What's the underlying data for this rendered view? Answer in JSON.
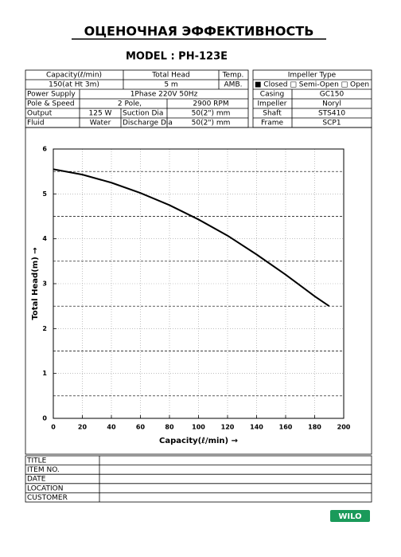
{
  "header": {
    "title": "ОЦЕНОЧНАЯ ЭФФЕКТИВНОСТЬ",
    "model": "MODEL : PH-123E"
  },
  "spec": {
    "capacity_label": "Capacity(ℓ/min)",
    "capacity_value": "150(at Ht 3m)",
    "head_label": "Total Head",
    "head_value": "5 m",
    "temp_label": "Temp.",
    "temp_value": "AMB.",
    "impeller_type_label": "Impeller Type",
    "impeller_type_value": "■ Closed □ Semi-Open □ Open",
    "rows": [
      [
        "Power Supply",
        "1Phase 220V 50Hz",
        "Casing",
        "GC150"
      ],
      [
        "Pole & Speed",
        "2 Pole,",
        "2900 RPM",
        "Impeller",
        "Noryl"
      ],
      [
        "Output",
        "125 W",
        "Suction Dia",
        "50(2\") mm",
        "Shaft",
        "STS410"
      ],
      [
        "Fluid",
        "Water",
        "Discharge Dia",
        "50(2\") mm",
        "Frame",
        "SCP1"
      ]
    ]
  },
  "chart_data": {
    "type": "line",
    "x_label": "Capacity(ℓ/min) →",
    "y_label": "Total Head(m) →",
    "x": [
      0,
      20,
      40,
      60,
      80,
      100,
      120,
      140,
      160,
      180,
      190
    ],
    "series": [
      {
        "name": "Total Head",
        "color": "#000000",
        "values": [
          5.55,
          5.43,
          5.25,
          5.02,
          4.75,
          4.43,
          4.07,
          3.65,
          3.2,
          2.72,
          2.5
        ]
      }
    ],
    "xlim": [
      0,
      200
    ],
    "xticks": [
      0,
      20,
      40,
      60,
      80,
      100,
      120,
      140,
      160,
      180,
      200
    ],
    "ylim": [
      0,
      6
    ],
    "yticks": [
      0,
      1,
      2,
      3,
      4,
      5,
      6
    ],
    "minor_yticks": [
      0.5,
      1.5,
      2.5,
      3.5,
      4.5,
      5.5
    ],
    "grid": true
  },
  "footer": {
    "labels": [
      "TITLE",
      "ITEM NO.",
      "DATE",
      "LOCATION",
      "CUSTOMER"
    ]
  },
  "logo": "WILO"
}
